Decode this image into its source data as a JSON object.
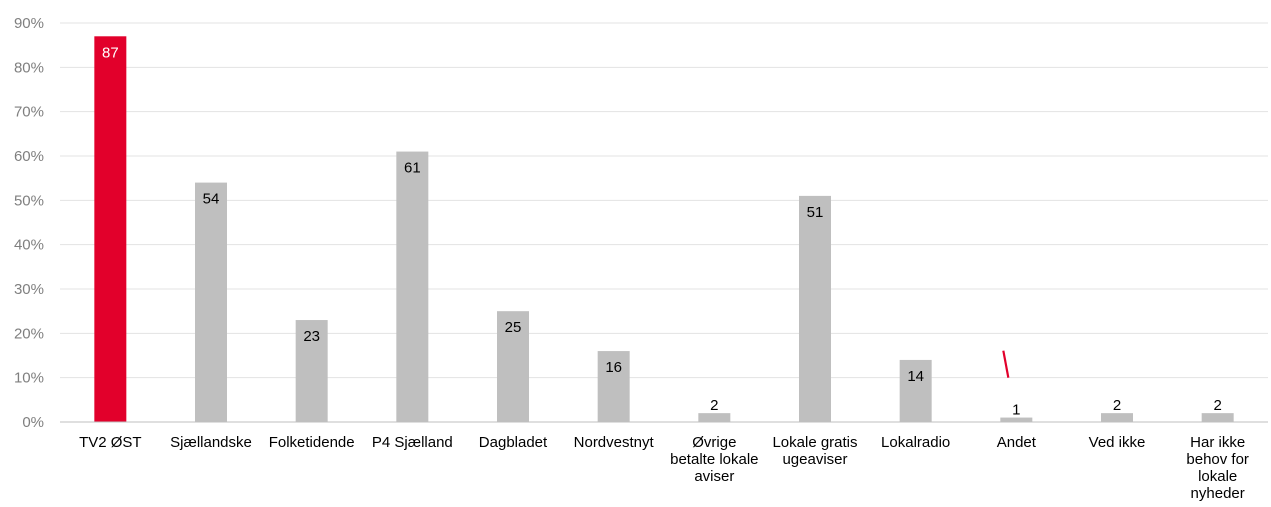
{
  "chart_data": {
    "type": "bar",
    "categories": [
      [
        "TV2 ØST"
      ],
      [
        "Sjællandske"
      ],
      [
        "Folketidende"
      ],
      [
        "P4 Sjælland"
      ],
      [
        "Dagbladet"
      ],
      [
        "Nordvestnyt"
      ],
      [
        "Øvrige",
        "betalte lokale",
        "aviser"
      ],
      [
        "Lokale gratis",
        "ugeaviser"
      ],
      [
        "Lokalradio"
      ],
      [
        "Andet"
      ],
      [
        "Ved ikke"
      ],
      [
        "Har ikke",
        "behov for",
        "lokale",
        "nyheder"
      ]
    ],
    "values": [
      87,
      54,
      23,
      61,
      25,
      16,
      2,
      51,
      14,
      1,
      2,
      2
    ],
    "data_labels": [
      "87",
      "54",
      "23",
      "61",
      "25",
      "16",
      "2",
      "51",
      "14",
      "1",
      "2",
      "2"
    ],
    "highlight_index": 0,
    "colors": {
      "highlight": "#e2002b",
      "default": "#bfbfbf",
      "label_on_highlight": "#ffffff",
      "label_default": "#000000",
      "marker": "#e2002b"
    },
    "ylim": [
      0,
      90
    ],
    "yticks": [
      0,
      10,
      20,
      30,
      40,
      50,
      60,
      70,
      80,
      90
    ],
    "ytick_labels": [
      "0%",
      "10%",
      "20%",
      "30%",
      "40%",
      "50%",
      "60%",
      "70%",
      "80%",
      "90%"
    ],
    "grid": true,
    "title": "",
    "xlabel": "",
    "ylabel": "",
    "annotations": [
      {
        "type": "slash-mark",
        "category_index": 9,
        "value": 10
      }
    ]
  }
}
